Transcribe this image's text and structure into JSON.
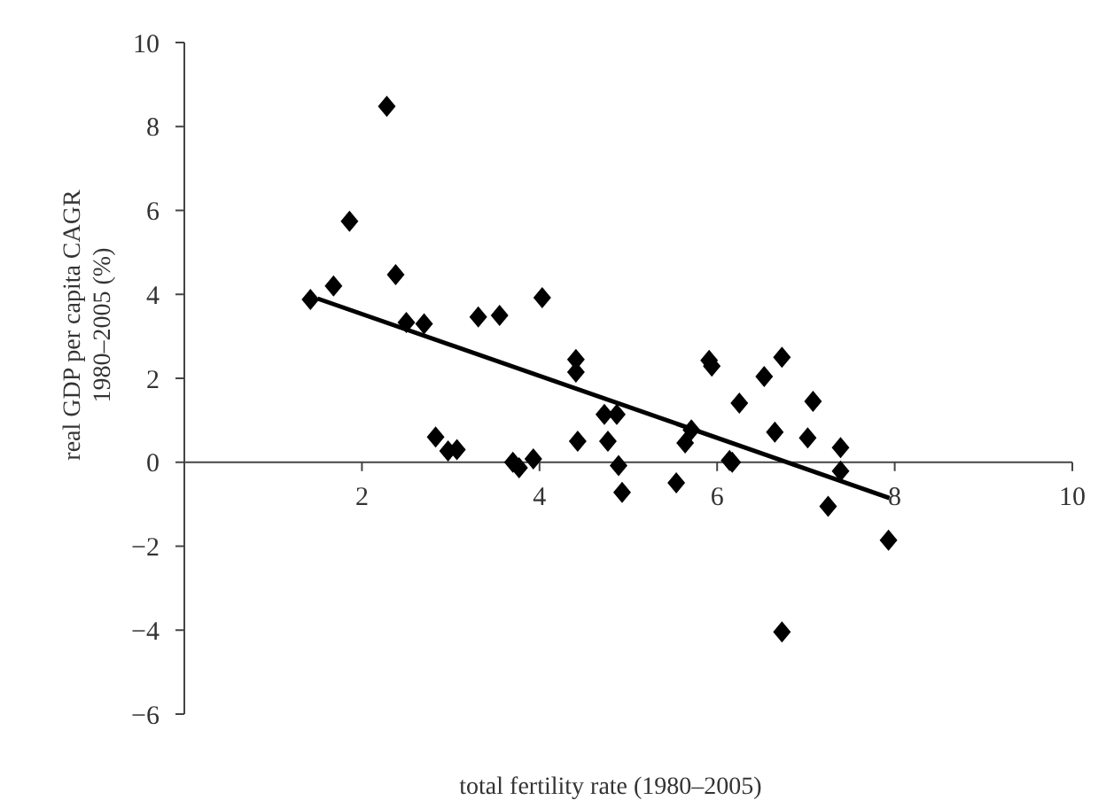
{
  "chart_data": {
    "type": "scatter",
    "xlabel": "total fertility rate (1980–2005)",
    "ylabel": "real GDP per capita CAGR 1980–2005 (%)",
    "xlim": [
      0,
      10
    ],
    "xticks": [
      {
        "value": 0,
        "label": null
      },
      2,
      4,
      6,
      8,
      10
    ],
    "ylim": [
      -6,
      10
    ],
    "yticks": [
      -6,
      -4,
      -2,
      0,
      2,
      4,
      6,
      8,
      10
    ],
    "grid": false,
    "series": [
      {
        "marker": "diamond",
        "color": "#000000",
        "x": [
          1.42,
          1.68,
          1.86,
          2.28,
          2.38,
          2.5,
          2.7,
          2.83,
          2.97,
          3.07,
          3.31,
          3.55,
          3.7,
          3.77,
          3.93,
          4.03,
          4.41,
          4.41,
          4.43,
          4.73,
          4.77,
          4.87,
          4.89,
          4.93,
          5.54,
          5.64,
          5.71,
          5.91,
          5.94,
          6.14,
          6.17,
          6.25,
          6.53,
          6.65,
          6.73,
          6.73,
          7.02,
          7.08,
          7.25,
          7.39,
          7.39,
          7.93
        ],
        "values": [
          3.88,
          4.2,
          5.74,
          8.48,
          4.47,
          3.33,
          3.3,
          0.6,
          0.27,
          0.3,
          3.46,
          3.5,
          0,
          -0.13,
          0.08,
          3.92,
          2.45,
          2.15,
          0.5,
          1.14,
          0.5,
          1.14,
          -0.08,
          -0.72,
          -0.49,
          0.46,
          0.77,
          2.43,
          2.29,
          0.04,
          0,
          1.41,
          2.04,
          0.72,
          2.5,
          -4.04,
          0.58,
          1.45,
          -1.05,
          0.35,
          -0.21,
          -1.86
        ]
      },
      {
        "type": "line",
        "marker": "none",
        "color": "#000000",
        "x": [
          1.5,
          7.94
        ],
        "values": [
          3.9,
          -0.85
        ]
      }
    ]
  }
}
